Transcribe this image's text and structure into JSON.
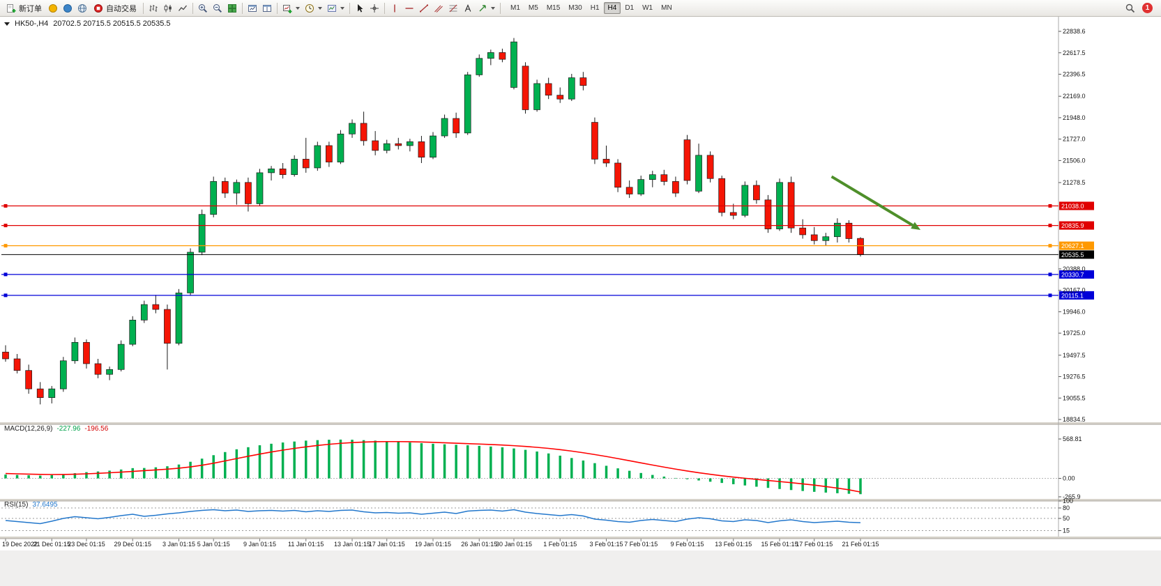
{
  "toolbar": {
    "new_order_label": "新订单",
    "auto_trading_label": "自动交易",
    "timeframes": [
      "M1",
      "M5",
      "M15",
      "M30",
      "H1",
      "H4",
      "D1",
      "W1",
      "MN"
    ],
    "active_timeframe": "H4",
    "notification_count": "1"
  },
  "chart_header": {
    "symbol_title": "HK50-,H4",
    "ohlc_text": "20702.5 20715.5 20515.5 20535.5"
  },
  "chart_data": {
    "type": "candlestick",
    "symbol": "HK50-",
    "period": "H4",
    "last_ohlc": {
      "open": 20702.5,
      "high": 20715.5,
      "low": 20515.5,
      "close": 20535.5
    },
    "colors": {
      "bull": "#00b050",
      "bear": "#f51505",
      "wick": "#1a1a1a",
      "line_red": "#e00000",
      "line_orange": "#ff9900",
      "line_blue": "#0000d8",
      "price_line": "#000000",
      "macd_hist": "#00b050",
      "macd_signal": "#ff0000",
      "rsi": "#2277cc",
      "arrow": "#4e8f2a"
    },
    "price_axis": {
      "max": 22838.6,
      "min": 18834.5,
      "ticks": [
        "22838.6",
        "22617.5",
        "22396.5",
        "22169.0",
        "21948.0",
        "21727.0",
        "21506.0",
        "21278.5",
        "20388.0",
        "20167.0",
        "19946.0",
        "19725.0",
        "19497.5",
        "19276.5",
        "19055.5",
        "18834.5"
      ]
    },
    "hlines": [
      {
        "price": 21038.0,
        "label": "21038.0",
        "color": "#e00000"
      },
      {
        "price": 20835.9,
        "label": "20835.9",
        "color": "#e00000"
      },
      {
        "price": 20627.1,
        "label": "20627.1",
        "color": "#ff9900"
      },
      {
        "price": 20330.7,
        "label": "20330.7",
        "color": "#0000d8"
      },
      {
        "price": 20115.1,
        "label": "20115.1",
        "color": "#0000d8"
      }
    ],
    "current_price": {
      "price": 20535.5,
      "label": "20535.5",
      "bg": "#000000"
    },
    "arrow": {
      "from": {
        "bar": 71.5,
        "price": 21340
      },
      "to": {
        "bar": 79.2,
        "price": 20790
      }
    },
    "candles": [
      [
        19530,
        19600,
        19430,
        19460
      ],
      [
        19460,
        19510,
        19310,
        19340
      ],
      [
        19340,
        19400,
        19100,
        19150
      ],
      [
        19150,
        19220,
        18990,
        19060
      ],
      [
        19060,
        19180,
        19000,
        19150
      ],
      [
        19150,
        19480,
        19120,
        19440
      ],
      [
        19440,
        19680,
        19410,
        19630
      ],
      [
        19630,
        19660,
        19360,
        19410
      ],
      [
        19410,
        19460,
        19260,
        19300
      ],
      [
        19300,
        19380,
        19240,
        19350
      ],
      [
        19350,
        19650,
        19330,
        19610
      ],
      [
        19610,
        19900,
        19590,
        19860
      ],
      [
        19860,
        20060,
        19830,
        20020
      ],
      [
        20020,
        20120,
        19930,
        19970
      ],
      [
        19970,
        20020,
        19350,
        19620
      ],
      [
        19620,
        20180,
        19600,
        20140
      ],
      [
        20140,
        20600,
        20110,
        20560
      ],
      [
        20560,
        21000,
        20530,
        20950
      ],
      [
        20950,
        21340,
        20920,
        21290
      ],
      [
        21290,
        21330,
        21120,
        21170
      ],
      [
        21170,
        21310,
        21050,
        21280
      ],
      [
        21280,
        21330,
        20980,
        21060
      ],
      [
        21060,
        21420,
        21040,
        21380
      ],
      [
        21380,
        21450,
        21300,
        21420
      ],
      [
        21420,
        21480,
        21320,
        21360
      ],
      [
        21360,
        21560,
        21340,
        21520
      ],
      [
        21520,
        21740,
        21380,
        21430
      ],
      [
        21430,
        21700,
        21400,
        21660
      ],
      [
        21660,
        21700,
        21440,
        21490
      ],
      [
        21490,
        21820,
        21470,
        21780
      ],
      [
        21780,
        21930,
        21740,
        21890
      ],
      [
        21890,
        22010,
        21660,
        21710
      ],
      [
        21710,
        21810,
        21560,
        21610
      ],
      [
        21610,
        21720,
        21580,
        21680
      ],
      [
        21680,
        21740,
        21620,
        21660
      ],
      [
        21660,
        21730,
        21600,
        21700
      ],
      [
        21700,
        21760,
        21480,
        21540
      ],
      [
        21540,
        21800,
        21520,
        21760
      ],
      [
        21760,
        21980,
        21740,
        21940
      ],
      [
        21940,
        22000,
        21740,
        21790
      ],
      [
        21790,
        22420,
        21770,
        22390
      ],
      [
        22390,
        22600,
        22370,
        22560
      ],
      [
        22560,
        22650,
        22490,
        22620
      ],
      [
        22620,
        22660,
        22520,
        22550
      ],
      [
        22260,
        22770,
        22240,
        22730
      ],
      [
        22480,
        22520,
        21990,
        22030
      ],
      [
        22030,
        22340,
        22010,
        22300
      ],
      [
        22300,
        22360,
        22140,
        22180
      ],
      [
        22180,
        22260,
        22100,
        22140
      ],
      [
        22140,
        22400,
        22120,
        22360
      ],
      [
        22360,
        22420,
        22230,
        22280
      ],
      [
        21900,
        21950,
        21470,
        21520
      ],
      [
        21520,
        21660,
        21440,
        21480
      ],
      [
        21480,
        21520,
        21180,
        21230
      ],
      [
        21230,
        21300,
        21120,
        21160
      ],
      [
        21160,
        21350,
        21140,
        21310
      ],
      [
        21310,
        21400,
        21230,
        21360
      ],
      [
        21360,
        21410,
        21250,
        21290
      ],
      [
        21290,
        21340,
        21130,
        21170
      ],
      [
        21720,
        21770,
        21260,
        21300
      ],
      [
        21190,
        21680,
        21170,
        21560
      ],
      [
        21560,
        21600,
        21280,
        21320
      ],
      [
        21320,
        21350,
        20930,
        20970
      ],
      [
        20970,
        21060,
        20900,
        20940
      ],
      [
        20940,
        21290,
        20920,
        21250
      ],
      [
        21250,
        21300,
        21060,
        21100
      ],
      [
        21100,
        21150,
        20760,
        20800
      ],
      [
        20800,
        21320,
        20780,
        21280
      ],
      [
        21280,
        21340,
        20760,
        20810
      ],
      [
        20810,
        20900,
        20700,
        20740
      ],
      [
        20740,
        20820,
        20640,
        20680
      ],
      [
        20680,
        20760,
        20630,
        20720
      ],
      [
        20720,
        20910,
        20660,
        20860
      ],
      [
        20860,
        20890,
        20660,
        20700
      ],
      [
        20702.5,
        20715.5,
        20515.5,
        20535.5
      ]
    ],
    "time_labels": [
      {
        "i": 0,
        "t": "19 Dec 2022"
      },
      {
        "i": 4,
        "t": "21 Dec 01:15"
      },
      {
        "i": 7,
        "t": "23 Dec 01:15"
      },
      {
        "i": 11,
        "t": "29 Dec 01:15"
      },
      {
        "i": 15,
        "t": "3 Jan 01:15"
      },
      {
        "i": 18,
        "t": "5 Jan 01:15"
      },
      {
        "i": 22,
        "t": "9 Jan 01:15"
      },
      {
        "i": 26,
        "t": "11 Jan 01:15"
      },
      {
        "i": 30,
        "t": "13 Jan 01:15"
      },
      {
        "i": 33,
        "t": "17 Jan 01:15"
      },
      {
        "i": 37,
        "t": "19 Jan 01:15"
      },
      {
        "i": 41,
        "t": "26 Jan 01:15"
      },
      {
        "i": 44,
        "t": "30 Jan 01:15"
      },
      {
        "i": 48,
        "t": "1 Feb 01:15"
      },
      {
        "i": 52,
        "t": "3 Feb 01:15"
      },
      {
        "i": 55,
        "t": "7 Feb 01:15"
      },
      {
        "i": 59,
        "t": "9 Feb 01:15"
      },
      {
        "i": 63,
        "t": "13 Feb 01:15"
      },
      {
        "i": 67,
        "t": "15 Feb 01:15"
      },
      {
        "i": 70,
        "t": "17 Feb 01:15"
      },
      {
        "i": 74,
        "t": "21 Feb 01:15"
      }
    ],
    "macd": {
      "label": "MACD(12,26,9)",
      "main_value": "-227.96",
      "signal_value": "-196.56",
      "axis_max": 568.81,
      "axis_min": -265.9,
      "axis_ticks": [
        "568.81",
        "0.00",
        "-265.9"
      ],
      "histogram": [
        55,
        50,
        45,
        40,
        48,
        60,
        75,
        90,
        100,
        112,
        128,
        148,
        150,
        160,
        175,
        200,
        240,
        285,
        335,
        380,
        420,
        450,
        478,
        500,
        518,
        532,
        545,
        552,
        558,
        560,
        558,
        552,
        545,
        538,
        528,
        518,
        508,
        500,
        492,
        485,
        478,
        470,
        460,
        448,
        432,
        412,
        388,
        360,
        328,
        294,
        258,
        220,
        182,
        145,
        110,
        78,
        50,
        26,
        6,
        -12,
        -30,
        -48,
        -66,
        -84,
        -102,
        -120,
        -137,
        -153,
        -168,
        -182,
        -194,
        -205,
        -214,
        -222,
        -227.96
      ],
      "signal": [
        70,
        66,
        62,
        58,
        56,
        57,
        60,
        66,
        73,
        81,
        90,
        101,
        112,
        122,
        133,
        147,
        166,
        190,
        219,
        252,
        286,
        319,
        351,
        381,
        408,
        433,
        455,
        475,
        492,
        506,
        517,
        524,
        529,
        531,
        531,
        529,
        525,
        520,
        514,
        508,
        502,
        496,
        489,
        481,
        472,
        461,
        448,
        433,
        415,
        394,
        370,
        344,
        316,
        286,
        255,
        224,
        193,
        163,
        134,
        107,
        82,
        59,
        38,
        19,
        2,
        -14,
        -30,
        -46,
        -62,
        -79,
        -97,
        -118,
        -140,
        -165,
        -196.56
      ]
    },
    "rsi": {
      "label": "RSI(15)",
      "value": "37.6495",
      "axis_ticks": [
        100,
        80,
        50,
        15
      ],
      "levels": [
        80,
        50,
        15
      ],
      "values": [
        44,
        41,
        38,
        35,
        42,
        50,
        55,
        52,
        49,
        53,
        58,
        62,
        56,
        59,
        63,
        66,
        70,
        73,
        75,
        72,
        74,
        70,
        72,
        73,
        71,
        73,
        69,
        72,
        70,
        73,
        74,
        69,
        66,
        67,
        65,
        66,
        62,
        65,
        68,
        64,
        71,
        73,
        74,
        71,
        75,
        68,
        64,
        61,
        58,
        61,
        57,
        48,
        45,
        41,
        39,
        44,
        47,
        44,
        41,
        48,
        52,
        49,
        43,
        41,
        46,
        44,
        38,
        43,
        46,
        41,
        38,
        40,
        42,
        39,
        37.65
      ]
    }
  }
}
